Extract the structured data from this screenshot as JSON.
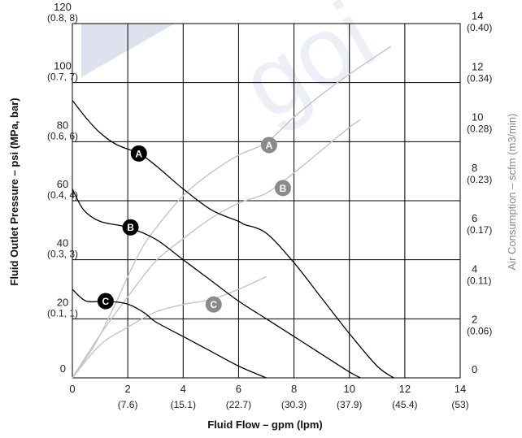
{
  "chart_data": {
    "type": "line",
    "xlabel": "Fluid Flow – gpm (lpm)",
    "ylabel": "Fluid Outlet Pressure – psi (MPa, bar)",
    "ylabel_right": "Air Consumption – scfm (m3/min)",
    "xlim": [
      0,
      14
    ],
    "ylim": [
      0,
      120
    ],
    "ylim_right": [
      0,
      14
    ],
    "grid": true,
    "watermark": "goi",
    "x_ticks": [
      {
        "value": 0,
        "label": "0",
        "sub": ""
      },
      {
        "value": 2,
        "label": "2",
        "sub": "(7.6)"
      },
      {
        "value": 4,
        "label": "4",
        "sub": "(15.1)"
      },
      {
        "value": 6,
        "label": "6",
        "sub": "(22.7)"
      },
      {
        "value": 8,
        "label": "8",
        "sub": "(30.3)"
      },
      {
        "value": 10,
        "label": "10",
        "sub": "(37.9)"
      },
      {
        "value": 12,
        "label": "12",
        "sub": "(45.4)"
      },
      {
        "value": 14,
        "label": "14",
        "sub": "(53)"
      }
    ],
    "y_ticks": [
      {
        "value": 0,
        "label": "0",
        "sub": ""
      },
      {
        "value": 20,
        "label": "20",
        "sub": "(0.1, 1)"
      },
      {
        "value": 40,
        "label": "40",
        "sub": "(0.3, 3)"
      },
      {
        "value": 60,
        "label": "60",
        "sub": "(0.4, 4)"
      },
      {
        "value": 80,
        "label": "80",
        "sub": "(0.6, 6)"
      },
      {
        "value": 100,
        "label": "100",
        "sub": "(0.7, 7)"
      },
      {
        "value": 120,
        "label": "120",
        "sub": "(0.8, 8)"
      }
    ],
    "y_right_ticks": [
      {
        "value": 0,
        "label": "0",
        "sub": ""
      },
      {
        "value": 2,
        "label": "2",
        "sub": "(0.06)"
      },
      {
        "value": 4,
        "label": "4",
        "sub": "(0.11)"
      },
      {
        "value": 6,
        "label": "6",
        "sub": "(0.17)"
      },
      {
        "value": 8,
        "label": "8",
        "sub": "(0.23)"
      },
      {
        "value": 10,
        "label": "10",
        "sub": "(0.28)"
      },
      {
        "value": 12,
        "label": "12",
        "sub": "(0.34)"
      },
      {
        "value": 14,
        "label": "14",
        "sub": "(0.40)"
      }
    ],
    "pressure_series": [
      {
        "name": "A",
        "color": "#000000",
        "label_at": [
          2.4,
          76
        ],
        "points": [
          [
            0,
            94
          ],
          [
            0.5,
            88
          ],
          [
            1,
            83
          ],
          [
            1.6,
            79
          ],
          [
            2.4,
            76
          ],
          [
            3,
            72
          ],
          [
            4,
            64
          ],
          [
            5,
            57
          ],
          [
            6,
            53
          ],
          [
            6.2,
            52
          ],
          [
            7,
            49
          ],
          [
            8,
            39
          ],
          [
            9,
            27
          ],
          [
            10,
            15
          ],
          [
            11,
            4
          ],
          [
            11.6,
            0
          ]
        ]
      },
      {
        "name": "B",
        "color": "#000000",
        "label_at": [
          2.1,
          51
        ],
        "points": [
          [
            0,
            64
          ],
          [
            0.4,
            57
          ],
          [
            1,
            53
          ],
          [
            2,
            51
          ],
          [
            3,
            47
          ],
          [
            4,
            40
          ],
          [
            5,
            33
          ],
          [
            6,
            26
          ],
          [
            7,
            20
          ],
          [
            8,
            14
          ],
          [
            9,
            8
          ],
          [
            10,
            2
          ],
          [
            10.4,
            0
          ]
        ]
      },
      {
        "name": "C",
        "color": "#000000",
        "label_at": [
          1.2,
          26
        ],
        "points": [
          [
            0,
            30
          ],
          [
            0.5,
            26
          ],
          [
            1.2,
            26
          ],
          [
            2,
            25
          ],
          [
            2.6,
            22
          ],
          [
            3,
            19
          ],
          [
            4,
            14
          ],
          [
            5,
            9
          ],
          [
            6,
            4
          ],
          [
            7,
            0
          ]
        ]
      }
    ],
    "air_series": [
      {
        "name": "A",
        "color": "#c4c4c4",
        "label_at": [
          7.1,
          9.2
        ],
        "points": [
          [
            0,
            0
          ],
          [
            0.8,
            1.3
          ],
          [
            1.5,
            2.8
          ],
          [
            2,
            4
          ],
          [
            2.5,
            5.1
          ],
          [
            3,
            5.9
          ],
          [
            4,
            7.2
          ],
          [
            5,
            8.1
          ],
          [
            6,
            8.8
          ],
          [
            7,
            9.3
          ],
          [
            8,
            10.3
          ],
          [
            9,
            11.2
          ],
          [
            10,
            12
          ],
          [
            11.5,
            13.1
          ]
        ]
      },
      {
        "name": "B",
        "color": "#c4c4c4",
        "label_at": [
          7.6,
          7.5
        ],
        "points": [
          [
            0,
            0
          ],
          [
            1,
            1.7
          ],
          [
            2,
            3.2
          ],
          [
            3,
            4.6
          ],
          [
            4,
            5.5
          ],
          [
            5,
            6.3
          ],
          [
            6,
            6.9
          ],
          [
            7,
            7.3
          ],
          [
            8,
            8.1
          ],
          [
            9,
            9
          ],
          [
            10,
            9.9
          ],
          [
            10.4,
            10.2
          ]
        ]
      },
      {
        "name": "C",
        "color": "#c4c4c4",
        "label_at": [
          5.1,
          2.9
        ],
        "points": [
          [
            0,
            0
          ],
          [
            1,
            1.3
          ],
          [
            2,
            2
          ],
          [
            3,
            2.6
          ],
          [
            4,
            2.9
          ],
          [
            5,
            3.1
          ],
          [
            6,
            3.5
          ],
          [
            7,
            4
          ]
        ]
      }
    ]
  }
}
